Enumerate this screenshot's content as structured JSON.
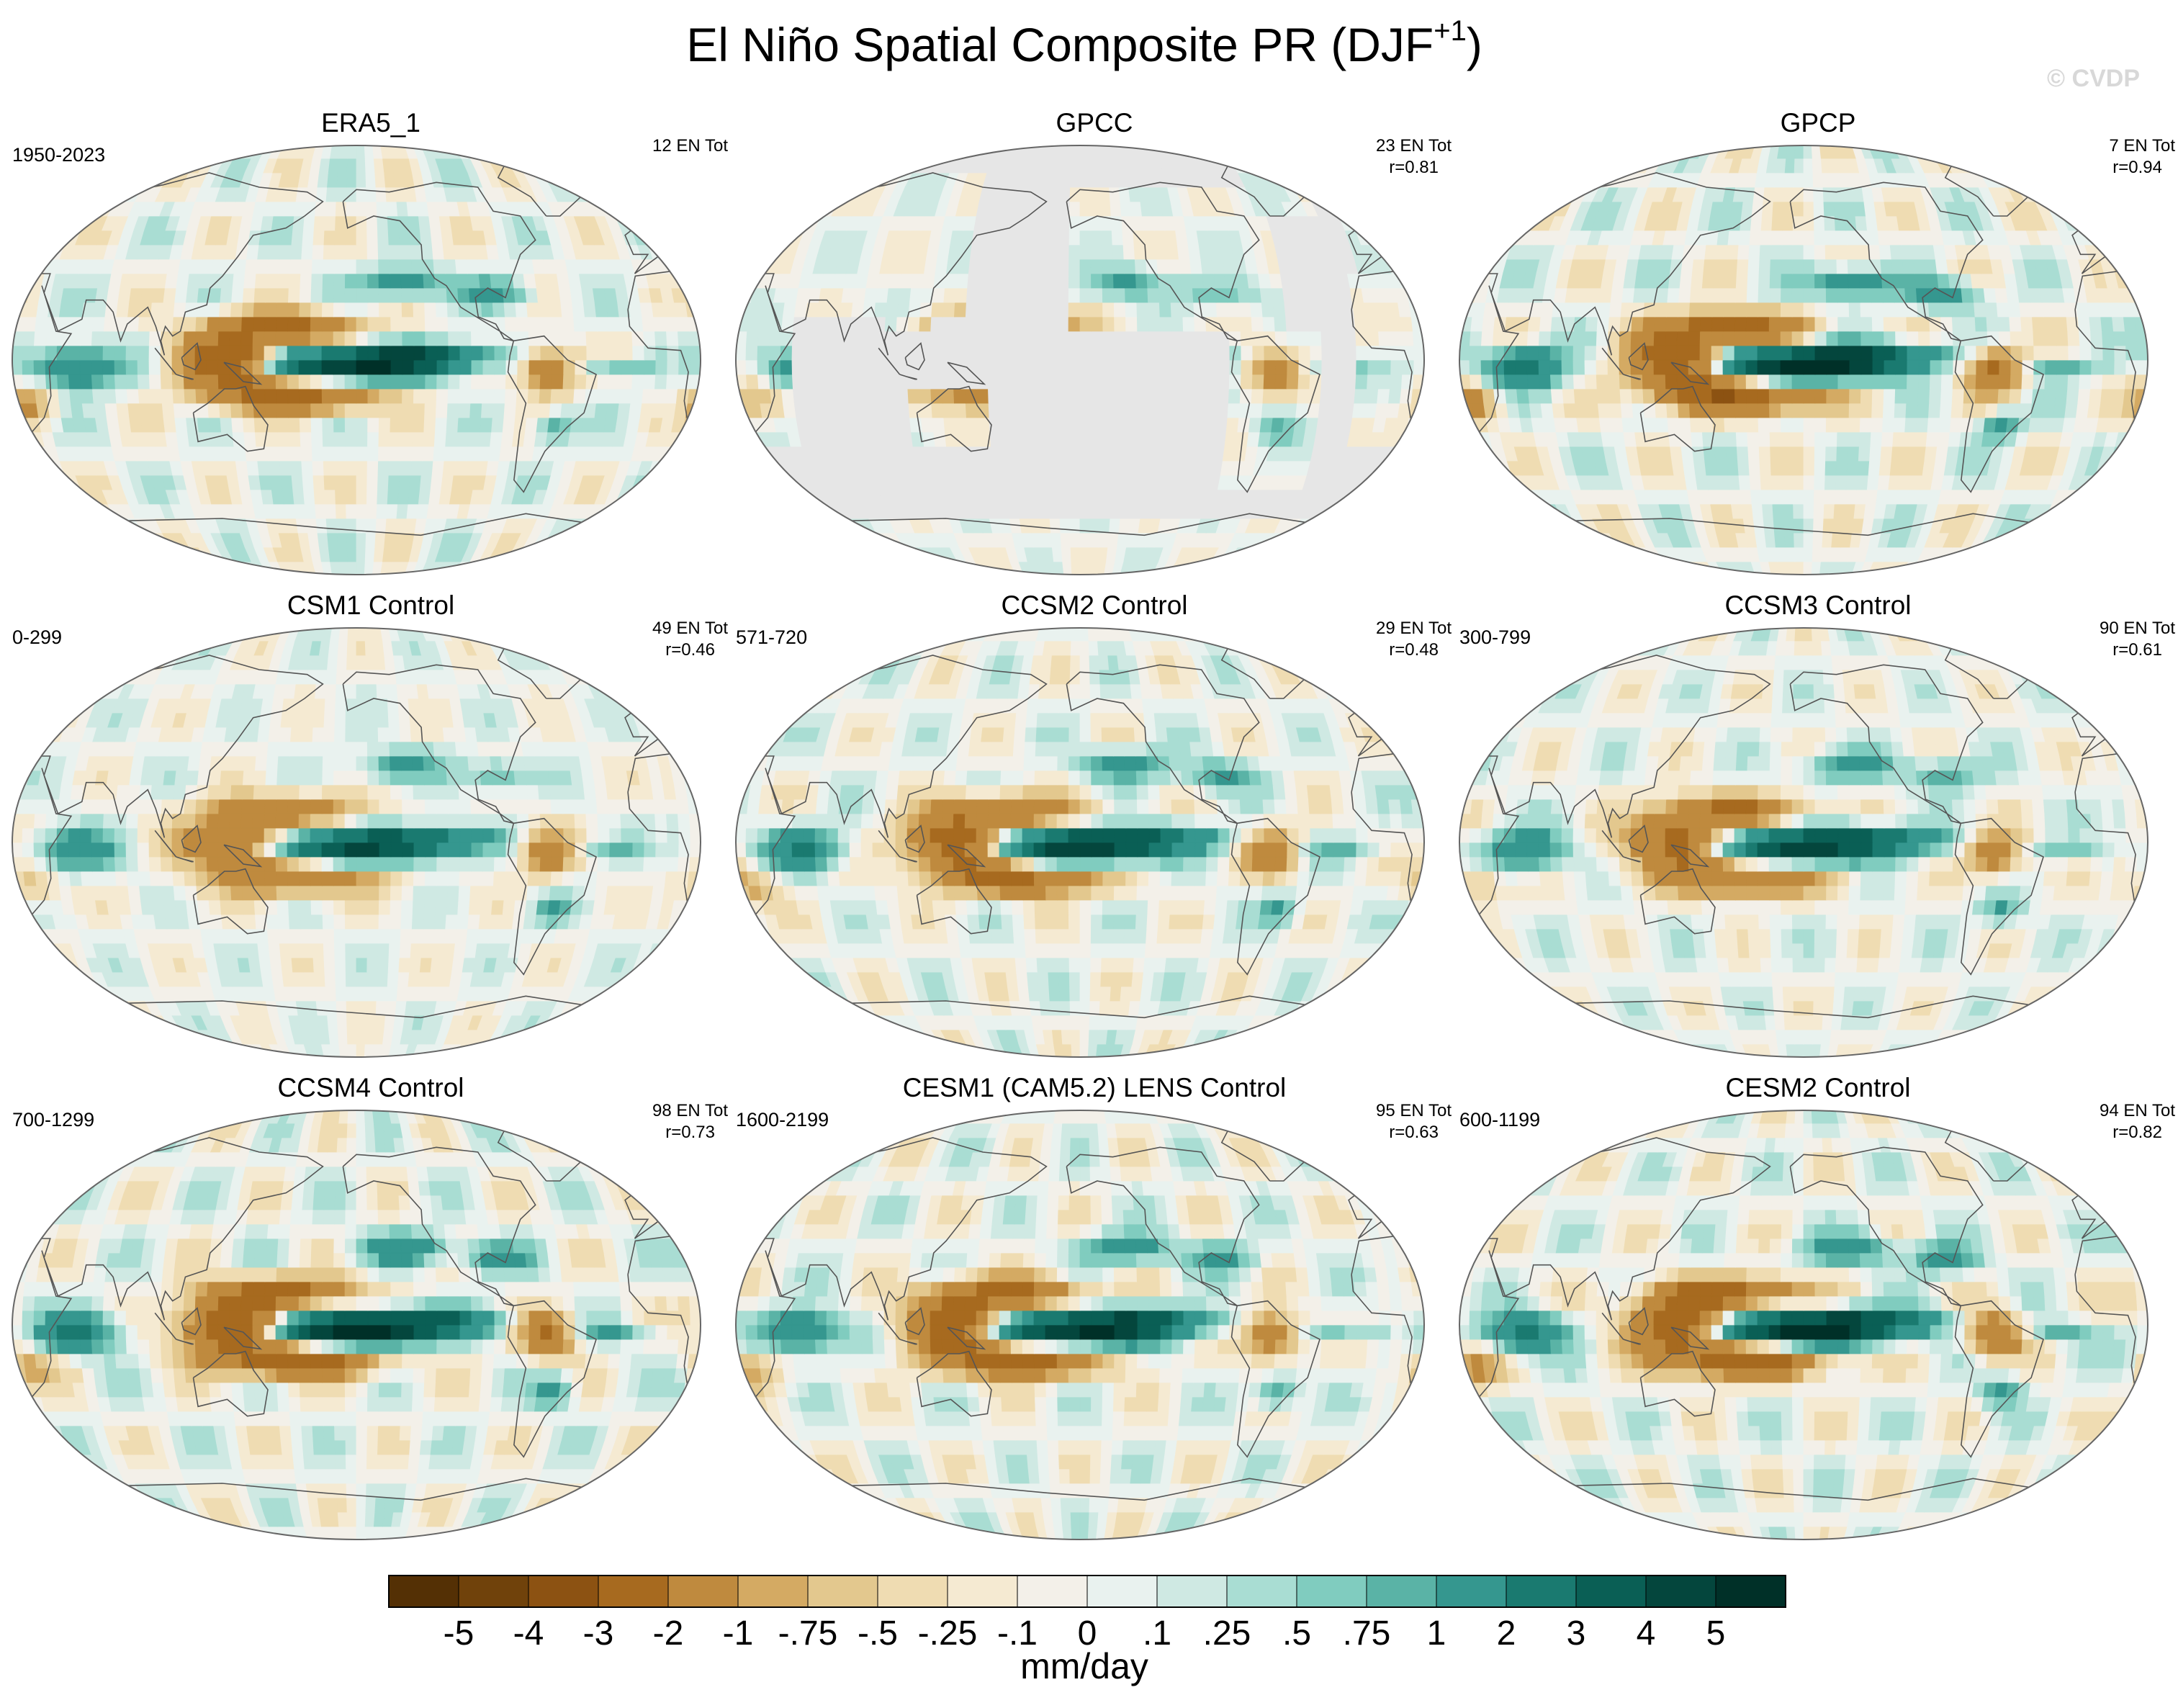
{
  "title_main": "El Niño Spatial Composite PR (DJF",
  "title_sup": "+1",
  "title_close": ")",
  "watermark": "© CVDP",
  "colors": {
    "land_mask": "#e6e6e6",
    "coast": "#555555"
  },
  "chart_data": {
    "type": "heatmap",
    "projection": "robinson",
    "variable": "PR",
    "season": "DJF+1",
    "panels": [
      {
        "title": "ERA5_1",
        "period": "1950-2023",
        "count": "12 EN Tot",
        "r": "",
        "masked": false,
        "strength": 1.0
      },
      {
        "title": "GPCC",
        "period": "",
        "count": "23 EN Tot",
        "r": "r=0.81",
        "masked": true,
        "strength": 0.7
      },
      {
        "title": "GPCP",
        "period": "",
        "count": "7 EN Tot",
        "r": "r=0.94",
        "masked": false,
        "strength": 1.1
      },
      {
        "title": "CSM1 Control",
        "period": "0-299",
        "count": "49 EN Tot",
        "r": "r=0.46",
        "masked": false,
        "strength": 0.75
      },
      {
        "title": "CCSM2 Control",
        "period": "571-720",
        "count": "29 EN Tot",
        "r": "r=0.48",
        "masked": false,
        "strength": 0.9
      },
      {
        "title": "CCSM3 Control",
        "period": "300-799",
        "count": "90 EN Tot",
        "r": "r=0.61",
        "masked": false,
        "strength": 0.85
      },
      {
        "title": "CCSM4 Control",
        "period": "700-1299",
        "count": "98 EN Tot",
        "r": "r=0.73",
        "masked": false,
        "strength": 1.05
      },
      {
        "title": "CESM1 (CAM5.2) LENS Control",
        "period": "1600-2199",
        "count": "95 EN Tot",
        "r": "r=0.63",
        "masked": false,
        "strength": 1.0
      },
      {
        "title": "CESM2 Control",
        "period": "600-1199",
        "count": "94 EN Tot",
        "r": "r=0.82",
        "masked": false,
        "strength": 1.05
      }
    ],
    "colorbar": {
      "labels": [
        "-5",
        "-4",
        "-3",
        "-2",
        "-1",
        "-.75",
        "-.5",
        "-.25",
        "-.1",
        "0",
        ".1",
        ".25",
        ".5",
        ".75",
        "1",
        "2",
        "3",
        "4",
        "5"
      ],
      "colors": [
        "#543005",
        "#70420b",
        "#8c5212",
        "#a76a1f",
        "#bf8a3e",
        "#d4aa63",
        "#e3c88e",
        "#efdcb2",
        "#f5ead2",
        "#f3f0e9",
        "#e9f2ef",
        "#cfe9e3",
        "#a9ddd3",
        "#80ccbf",
        "#5ab3a6",
        "#35978f",
        "#1a7a70",
        "#0a5f55",
        "#04463d",
        "#003028"
      ],
      "units": "mm/day"
    }
  }
}
